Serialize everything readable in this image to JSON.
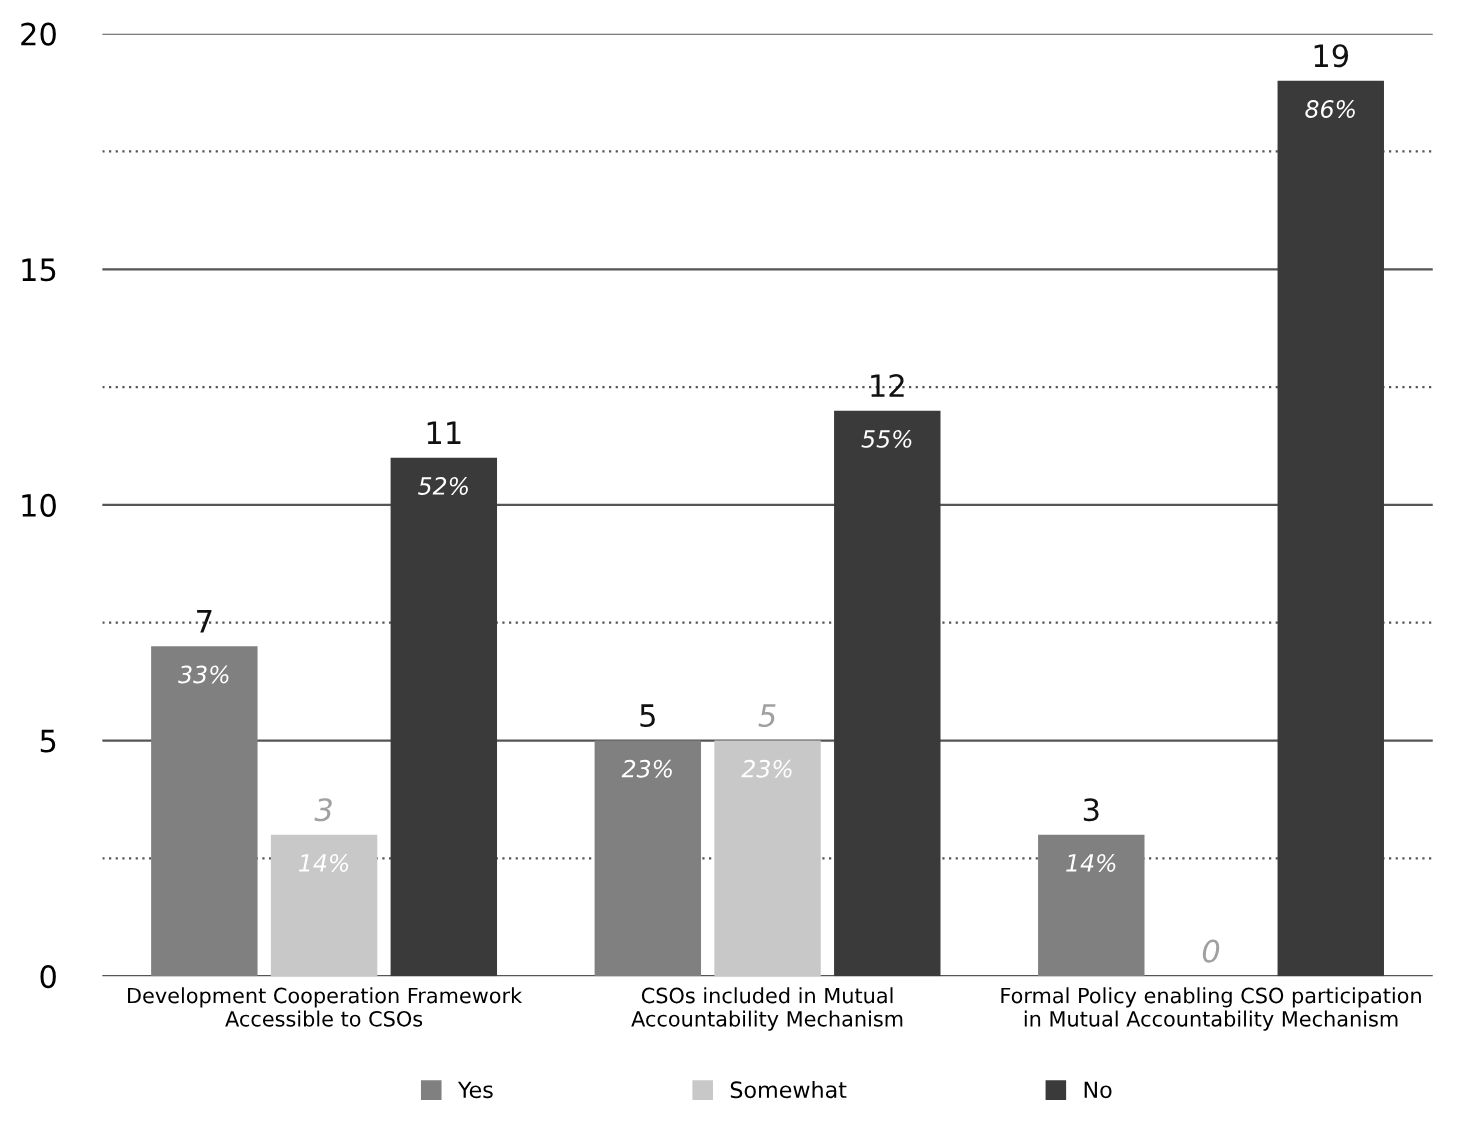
{
  "chart_data": {
    "type": "bar",
    "categories": [
      "Development Cooperation Framework\nAccessible to CSOs",
      "CSOs included in Mutual\nAccountability Mechanism",
      "Formal Policy enabling CSO participation\nin Mutual Accountability Mechanism"
    ],
    "series": [
      {
        "name": "Yes",
        "color": "#808080",
        "values": [
          7,
          5,
          3
        ]
      },
      {
        "name": "Somewhat",
        "color": "#c8c8c8",
        "values": [
          3,
          5,
          0
        ]
      },
      {
        "name": "No",
        "color": "#3a3a3a",
        "values": [
          11,
          12,
          19
        ]
      }
    ],
    "ylim": [
      0,
      20
    ],
    "yticks": [
      0,
      {
        "value": 2.5,
        "label": null
      },
      5,
      {
        "value": 7.5,
        "label": null
      },
      10,
      {
        "value": 12.5,
        "label": null
      },
      15,
      {
        "value": 17.5,
        "label": null
      },
      20
    ],
    "annotations": [
      "33%",
      "14%",
      "52%",
      "23%",
      "23%",
      "55%",
      "14%",
      "86%"
    ],
    "grid": "y",
    "data_labels": true,
    "legend": "bottom"
  }
}
